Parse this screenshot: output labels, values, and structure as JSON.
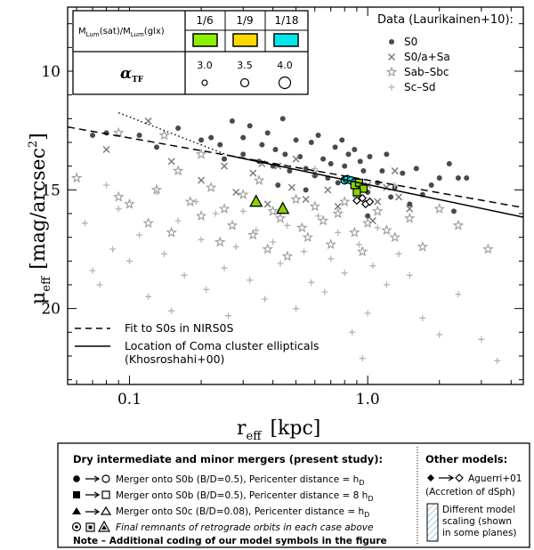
{
  "chart_data": {
    "type": "scatter",
    "xscale": "log",
    "xlim": [
      0.055,
      4.5
    ],
    "ylim": [
      23.2,
      7.3
    ],
    "y_inverted": true,
    "xlabel_main": "r",
    "xlabel_sub": "eff",
    "xlabel_unit": "[kpc]",
    "ylabel_main": "μ",
    "ylabel_sub": "eff",
    "ylabel_unit": "[mag/arcsec",
    "ylabel_sup": "2",
    "ylabel_close": "]",
    "x_ticks": [
      {
        "v": 0.1,
        "label": "0.1"
      },
      {
        "v": 1.0,
        "label": "1.0"
      }
    ],
    "y_ticks": [
      {
        "v": 10,
        "label": "10"
      },
      {
        "v": 15,
        "label": "15"
      },
      {
        "v": 20,
        "label": "20"
      }
    ],
    "legend_title": "Data (Laurikainen+10):",
    "legend": [
      {
        "marker": "dot",
        "label": "S0"
      },
      {
        "marker": "cross",
        "label": "S0/a+Sa"
      },
      {
        "marker": "star",
        "label": "Sab–Sbc"
      },
      {
        "marker": "plus",
        "label": "Sc–Sd"
      }
    ],
    "lines": [
      {
        "name": "fit-s0-nirs0s",
        "style": "dashed",
        "x": [
          0.055,
          4.5
        ],
        "y": [
          12.35,
          15.75
        ]
      },
      {
        "name": "coma-ellipticals",
        "style": "solid",
        "x": [
          0.26,
          4.5
        ],
        "y": [
          13.55,
          16.15
        ]
      },
      {
        "name": "coma-extrapolation",
        "style": "dotted",
        "x": [
          0.09,
          0.26
        ],
        "y": [
          11.75,
          13.55
        ]
      }
    ],
    "line_legend": [
      {
        "style": "dashed",
        "label": "Fit to S0s in NIRS0S"
      },
      {
        "style": "solid",
        "label": "Location of Coma cluster ellipticals"
      },
      {
        "style": "none",
        "label": "(Khosroshahi+00)"
      }
    ],
    "series": [
      {
        "name": "S0",
        "marker": "dot",
        "points": [
          [
            0.07,
            12.7
          ],
          [
            0.08,
            12.6
          ],
          [
            0.11,
            12.7
          ],
          [
            0.13,
            13.2
          ],
          [
            0.16,
            12.4
          ],
          [
            0.2,
            12.9
          ],
          [
            0.22,
            12.8
          ],
          [
            0.24,
            13.1
          ],
          [
            0.25,
            13.7
          ],
          [
            0.27,
            12.1
          ],
          [
            0.3,
            12.8
          ],
          [
            0.3,
            13.5
          ],
          [
            0.32,
            12.3
          ],
          [
            0.35,
            13.8
          ],
          [
            0.36,
            13.1
          ],
          [
            0.38,
            12.6
          ],
          [
            0.4,
            14.0
          ],
          [
            0.41,
            13.3
          ],
          [
            0.44,
            12.0
          ],
          [
            0.45,
            13.5
          ],
          [
            0.47,
            14.2
          ],
          [
            0.5,
            12.9
          ],
          [
            0.52,
            13.6
          ],
          [
            0.55,
            14.1
          ],
          [
            0.58,
            13.0
          ],
          [
            0.6,
            14.4
          ],
          [
            0.62,
            12.7
          ],
          [
            0.65,
            13.7
          ],
          [
            0.68,
            14.5
          ],
          [
            0.7,
            13.9
          ],
          [
            0.73,
            13.2
          ],
          [
            0.75,
            14.7
          ],
          [
            0.78,
            12.9
          ],
          [
            0.8,
            14.0
          ],
          [
            0.83,
            13.5
          ],
          [
            0.85,
            14.6
          ],
          [
            0.88,
            13.3
          ],
          [
            0.9,
            14.9
          ],
          [
            0.93,
            13.8
          ],
          [
            0.96,
            14.2
          ],
          [
            1.0,
            15.1
          ],
          [
            1.02,
            13.6
          ],
          [
            1.1,
            14.7
          ],
          [
            1.15,
            14.2
          ],
          [
            1.2,
            13.5
          ],
          [
            1.25,
            15.3
          ],
          [
            1.3,
            14.9
          ],
          [
            1.4,
            14.3
          ],
          [
            1.5,
            15.6
          ],
          [
            1.6,
            14.1
          ],
          [
            1.7,
            15.2
          ],
          [
            1.85,
            14.8
          ],
          [
            2.0,
            14.5
          ],
          [
            2.2,
            13.9
          ],
          [
            2.4,
            14.5
          ],
          [
            2.6,
            14.5
          ],
          [
            2.3,
            15.9
          ],
          [
            1.0,
            16.1
          ],
          [
            0.55,
            15.0
          ],
          [
            0.42,
            14.8
          ]
        ]
      },
      {
        "name": "S0/a+Sa",
        "marker": "cross",
        "points": [
          [
            0.08,
            13.3
          ],
          [
            0.12,
            12.1
          ],
          [
            0.15,
            13.8
          ],
          [
            0.2,
            14.6
          ],
          [
            0.25,
            14.0
          ],
          [
            0.28,
            15.1
          ],
          [
            0.33,
            14.3
          ],
          [
            0.38,
            15.6
          ],
          [
            0.42,
            14.0
          ],
          [
            0.48,
            14.9
          ],
          [
            0.55,
            15.4
          ],
          [
            0.6,
            14.3
          ],
          [
            0.68,
            15.0
          ],
          [
            0.75,
            15.7
          ],
          [
            0.82,
            14.6
          ],
          [
            0.9,
            15.2
          ],
          [
            1.0,
            14.8
          ],
          [
            1.1,
            15.5
          ],
          [
            1.2,
            14.9
          ],
          [
            1.35,
            15.3
          ],
          [
            1.5,
            15.8
          ],
          [
            0.5,
            13.7
          ],
          [
            0.36,
            13.9
          ],
          [
            1.05,
            16.3
          ],
          [
            1.3,
            14.2
          ]
        ]
      },
      {
        "name": "Sab-Sbc",
        "marker": "star",
        "points": [
          [
            0.06,
            14.5
          ],
          [
            0.09,
            15.3
          ],
          [
            0.1,
            15.6
          ],
          [
            0.12,
            16.4
          ],
          [
            0.13,
            15.0
          ],
          [
            0.15,
            16.8
          ],
          [
            0.16,
            14.2
          ],
          [
            0.18,
            15.5
          ],
          [
            0.2,
            16.1
          ],
          [
            0.22,
            14.9
          ],
          [
            0.24,
            17.2
          ],
          [
            0.25,
            15.8
          ],
          [
            0.27,
            16.5
          ],
          [
            0.3,
            15.2
          ],
          [
            0.33,
            16.9
          ],
          [
            0.35,
            14.6
          ],
          [
            0.38,
            17.5
          ],
          [
            0.4,
            15.9
          ],
          [
            0.43,
            16.2
          ],
          [
            0.46,
            17.8
          ],
          [
            0.5,
            15.4
          ],
          [
            0.53,
            16.6
          ],
          [
            0.56,
            17.0
          ],
          [
            0.6,
            15.7
          ],
          [
            0.65,
            16.3
          ],
          [
            0.7,
            17.3
          ],
          [
            0.75,
            16.0
          ],
          [
            0.8,
            15.5
          ],
          [
            0.88,
            16.8
          ],
          [
            0.95,
            17.6
          ],
          [
            1.0,
            16.4
          ],
          [
            1.1,
            15.9
          ],
          [
            1.2,
            16.7
          ],
          [
            1.3,
            17.0
          ],
          [
            1.5,
            16.2
          ],
          [
            1.7,
            17.4
          ],
          [
            2.0,
            15.8
          ],
          [
            2.4,
            16.5
          ],
          [
            3.2,
            17.5
          ],
          [
            0.14,
            12.7
          ],
          [
            0.09,
            12.6
          ],
          [
            0.2,
            13.5
          ]
        ]
      },
      {
        "name": "Sc-Sd",
        "marker": "plus",
        "points": [
          [
            0.065,
            16.4
          ],
          [
            0.07,
            18.4
          ],
          [
            0.075,
            19.0
          ],
          [
            0.08,
            14.8
          ],
          [
            0.085,
            17.5
          ],
          [
            0.09,
            15.8
          ],
          [
            0.1,
            18.0
          ],
          [
            0.11,
            16.9
          ],
          [
            0.12,
            19.5
          ],
          [
            0.13,
            15.1
          ],
          [
            0.14,
            17.7
          ],
          [
            0.15,
            20.1
          ],
          [
            0.16,
            16.3
          ],
          [
            0.17,
            18.6
          ],
          [
            0.19,
            15.5
          ],
          [
            0.2,
            17.1
          ],
          [
            0.21,
            19.2
          ],
          [
            0.23,
            16.0
          ],
          [
            0.25,
            18.3
          ],
          [
            0.26,
            20.3
          ],
          [
            0.28,
            17.4
          ],
          [
            0.3,
            15.9
          ],
          [
            0.32,
            18.8
          ],
          [
            0.34,
            16.7
          ],
          [
            0.37,
            19.6
          ],
          [
            0.4,
            17.2
          ],
          [
            0.43,
            18.1
          ],
          [
            0.46,
            16.5
          ],
          [
            0.5,
            20.0
          ],
          [
            0.54,
            17.6
          ],
          [
            0.58,
            18.9
          ],
          [
            0.62,
            16.1
          ],
          [
            0.66,
            19.3
          ],
          [
            0.7,
            17.9
          ],
          [
            0.75,
            16.8
          ],
          [
            0.8,
            18.5
          ],
          [
            0.86,
            21.0
          ],
          [
            0.92,
            17.3
          ],
          [
            1.0,
            20.2
          ],
          [
            1.05,
            18.2
          ],
          [
            1.1,
            16.6
          ],
          [
            1.2,
            19.0
          ],
          [
            1.35,
            17.7
          ],
          [
            1.5,
            18.6
          ],
          [
            1.7,
            20.4
          ],
          [
            2.0,
            21.1
          ],
          [
            2.4,
            19.4
          ],
          [
            3.0,
            21.3
          ],
          [
            3.5,
            22.2
          ],
          [
            0.95,
            22.1
          ],
          [
            1.3,
            14.8
          ],
          [
            0.6,
            14.1
          ]
        ]
      },
      {
        "name": "model-s0b-hd",
        "marker": "circle-model",
        "fill": "#00e5e5",
        "points": [
          [
            0.8,
            14.6
          ],
          [
            0.82,
            14.55
          ],
          [
            0.85,
            14.6
          ],
          [
            0.88,
            14.7
          ]
        ]
      },
      {
        "name": "model-s0b-8hd",
        "marker": "square-model",
        "fill": "#8ad400",
        "points": [
          [
            0.88,
            14.8
          ],
          [
            0.92,
            14.7
          ],
          [
            0.96,
            14.95
          ],
          [
            0.9,
            15.1
          ]
        ]
      },
      {
        "name": "model-s0c",
        "marker": "triangle-model",
        "fill": "#8ad400",
        "points": [
          [
            0.34,
            15.5
          ],
          [
            0.44,
            15.8
          ]
        ]
      },
      {
        "name": "aguerri01",
        "marker": "diamond",
        "points": [
          [
            0.9,
            15.45
          ],
          [
            0.95,
            15.35
          ],
          [
            0.98,
            15.6
          ],
          [
            1.02,
            15.5
          ]
        ]
      }
    ]
  },
  "ratio_table": {
    "header": "M",
    "header_sub1": "Lum",
    "header_mid": "(sat)/M",
    "header_sub2": "Lum",
    "header_end": "(glx)",
    "ratios": [
      "1/6",
      "1/9",
      "1/18"
    ],
    "colors": [
      "#8ef000",
      "#ffd800",
      "#00e8ee"
    ],
    "alpha_label": "α",
    "alpha_sub": "TF",
    "alpha_values": [
      "3.0",
      "3.5",
      "4.0"
    ]
  },
  "bottom_legend": {
    "left_title": "Dry intermediate and minor mergers (present study):",
    "rows": [
      {
        "marker": "circle",
        "text": "Merger onto S0b (B/D=0.5), Pericenter distance = h",
        "sub": "D"
      },
      {
        "marker": "square",
        "text": "Merger onto S0b (B/D=0.5), Pericenter distance = 8 h",
        "sub": "D"
      },
      {
        "marker": "triangle",
        "text": "Merger onto S0c (B/D=0.08), Pericenter distance = h",
        "sub": "D"
      }
    ],
    "retro_text": "Final remnants of retrograde orbits in each case above",
    "note": "Note – Additional coding of our model symbols in the figure",
    "right_title": "Other models:",
    "aguerri_label": "Aguerri+01",
    "aguerri_note": "(Accretion of dSph)",
    "scaling_lines": [
      "Different model",
      "scaling (shown",
      "in some planes)"
    ]
  }
}
